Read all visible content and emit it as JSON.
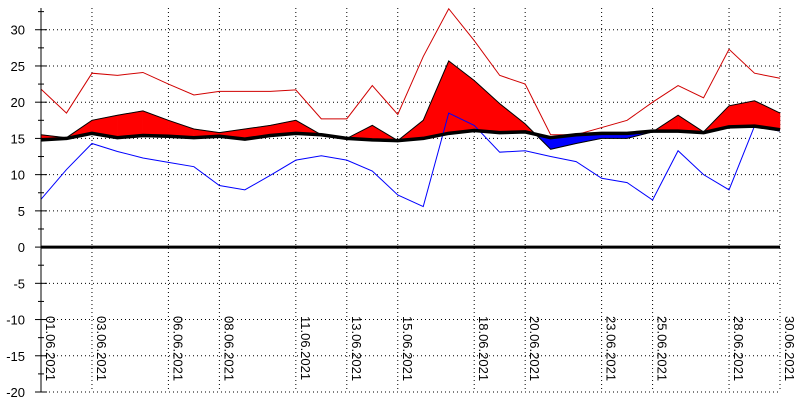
{
  "chart_data": {
    "type": "line",
    "title": "",
    "xlabel": "",
    "ylabel": "",
    "ylim": [
      -20,
      33
    ],
    "grid": true,
    "legend": "none",
    "x": [
      "01.06.2021",
      "02.06.2021",
      "03.06.2021",
      "04.06.2021",
      "05.06.2021",
      "06.06.2021",
      "07.06.2021",
      "08.06.2021",
      "09.06.2021",
      "10.06.2021",
      "11.06.2021",
      "12.06.2021",
      "13.06.2021",
      "14.06.2021",
      "15.06.2021",
      "16.06.2021",
      "17.06.2021",
      "18.06.2021",
      "19.06.2021",
      "20.06.2021",
      "21.06.2021",
      "22.06.2021",
      "23.06.2021",
      "24.06.2021",
      "25.06.2021",
      "26.06.2021",
      "27.06.2021",
      "28.06.2021",
      "29.06.2021",
      "30.06.2021"
    ],
    "x_tick_labels": [
      "01.06.2021",
      "03.06.2021",
      "06.06.2021",
      "08.06.2021",
      "11.06.2021",
      "13.06.2021",
      "15.06.2021",
      "18.06.2021",
      "20.06.2021",
      "23.06.2021",
      "25.06.2021",
      "28.06.2021",
      "30.06.2021"
    ],
    "y_ticks": [
      -20,
      -15,
      -10,
      -5,
      0,
      5,
      10,
      15,
      20,
      25,
      30
    ],
    "series": [
      {
        "key": "max",
        "color": "#d00000",
        "values": [
          21.8,
          18.5,
          24.0,
          23.7,
          24.1,
          22.5,
          21.0,
          21.5,
          21.5,
          21.5,
          21.7,
          17.7,
          17.7,
          22.3,
          18.3,
          26.3,
          32.9,
          28.5,
          23.7,
          22.5,
          15.5,
          15.5,
          16.5,
          17.5,
          20.0,
          22.3,
          20.6,
          27.3,
          24.0,
          23.3
        ]
      },
      {
        "key": "mean",
        "color": "#ff0000",
        "values": [
          15.5,
          15.1,
          17.5,
          18.2,
          18.8,
          17.5,
          16.3,
          15.8,
          16.3,
          16.8,
          17.5,
          15.5,
          15.0,
          16.8,
          14.7,
          17.5,
          25.7,
          23.0,
          19.8,
          17.0,
          13.5,
          14.3,
          15.0,
          15.0,
          15.9,
          18.2,
          15.9,
          19.5,
          20.2,
          18.5
        ]
      },
      {
        "key": "normal",
        "color": "#000000",
        "values": [
          14.8,
          15.0,
          15.7,
          15.1,
          15.4,
          15.3,
          15.1,
          15.3,
          14.9,
          15.4,
          15.7,
          15.5,
          15.0,
          14.8,
          14.7,
          15.0,
          15.7,
          16.1,
          15.8,
          15.9,
          15.1,
          15.5,
          15.7,
          15.7,
          16.0,
          16.0,
          15.8,
          16.6,
          16.7,
          16.2
        ]
      },
      {
        "key": "min",
        "color": "#0000ff",
        "values": [
          6.6,
          10.7,
          14.3,
          13.2,
          12.3,
          11.7,
          11.1,
          8.5,
          7.9,
          9.9,
          12.0,
          12.6,
          12.0,
          10.5,
          7.2,
          5.6,
          18.5,
          16.8,
          13.1,
          13.3,
          12.5,
          11.8,
          9.5,
          8.9,
          6.5,
          13.3,
          10.0,
          7.9,
          16.7,
          16.0
        ]
      }
    ]
  }
}
